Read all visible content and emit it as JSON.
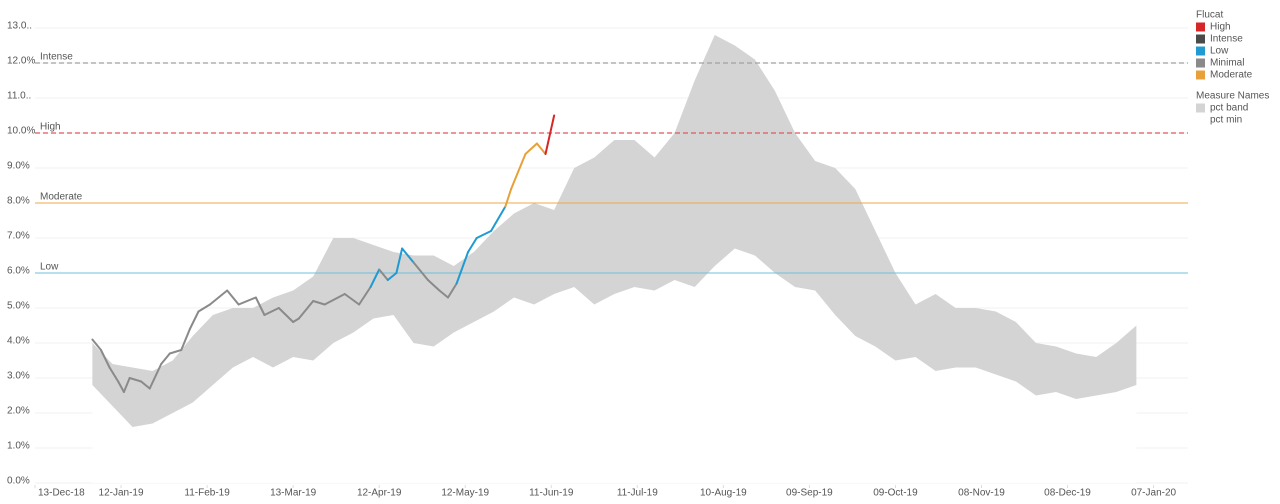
{
  "chart_data": {
    "type": "line",
    "xlim": [
      "2018-12-13",
      "2020-01-19"
    ],
    "xticks": [
      {
        "value": "2018-12-13",
        "label": "13-Dec-18"
      },
      {
        "value": "2019-01-12",
        "label": "12-Jan-19"
      },
      {
        "value": "2019-02-11",
        "label": "11-Feb-19"
      },
      {
        "value": "2019-03-13",
        "label": "13-Mar-19"
      },
      {
        "value": "2019-04-12",
        "label": "12-Apr-19"
      },
      {
        "value": "2019-05-12",
        "label": "12-May-19"
      },
      {
        "value": "2019-06-11",
        "label": "11-Jun-19"
      },
      {
        "value": "2019-07-11",
        "label": "11-Jul-19"
      },
      {
        "value": "2019-08-10",
        "label": "10-Aug-19"
      },
      {
        "value": "2019-09-09",
        "label": "09-Sep-19"
      },
      {
        "value": "2019-10-09",
        "label": "09-Oct-19"
      },
      {
        "value": "2019-11-08",
        "label": "08-Nov-19"
      },
      {
        "value": "2019-12-08",
        "label": "08-Dec-19"
      },
      {
        "value": "2020-01-07",
        "label": "07-Jan-20"
      }
    ],
    "ylim": [
      0,
      13
    ],
    "yticks": [
      {
        "value": 0,
        "label": "0.0%"
      },
      {
        "value": 1,
        "label": "1.0%"
      },
      {
        "value": 2,
        "label": "2.0%"
      },
      {
        "value": 3,
        "label": "3.0%"
      },
      {
        "value": 4,
        "label": "4.0%"
      },
      {
        "value": 5,
        "label": "5.0%"
      },
      {
        "value": 6,
        "label": "6.0%"
      },
      {
        "value": 7,
        "label": "7.0%"
      },
      {
        "value": 8,
        "label": "8.0%"
      },
      {
        "value": 9,
        "label": "9.0%"
      },
      {
        "value": 10,
        "label": "10.0%"
      },
      {
        "value": 11,
        "label": "11.0.."
      },
      {
        "value": 12,
        "label": "12.0%"
      },
      {
        "value": 13,
        "label": "13.0.."
      }
    ],
    "grid": true,
    "reference_lines": [
      {
        "label": "Intense",
        "value": 12,
        "color": "#a0a0a0",
        "dashed": true
      },
      {
        "label": "High",
        "value": 10,
        "color": "#e15759",
        "dashed": true
      },
      {
        "label": "Moderate",
        "value": 8,
        "color": "#f0a748",
        "dashed": false
      },
      {
        "label": "Low",
        "value": 6,
        "color": "#6cc0dc",
        "dashed": false
      }
    ],
    "legend_position": "right",
    "legend": [
      {
        "title": "Flucat",
        "items": [
          {
            "name": "High",
            "color": "#d62728"
          },
          {
            "name": "Intense",
            "color": "#4a4a4a"
          },
          {
            "name": "Low",
            "color": "#1f9bd1"
          },
          {
            "name": "Minimal",
            "color": "#8a8a8a"
          },
          {
            "name": "Moderate",
            "color": "#e8a03b"
          }
        ]
      },
      {
        "title": "Measure Names",
        "items": [
          {
            "name": "pct band",
            "color": "#d4d4d4"
          },
          {
            "name": "pct min",
            "color": "#ffffff"
          }
        ]
      }
    ],
    "area": {
      "x": [
        "2019-01-02",
        "2019-01-09",
        "2019-01-16",
        "2019-01-23",
        "2019-01-30",
        "2019-02-06",
        "2019-02-13",
        "2019-02-20",
        "2019-02-27",
        "2019-03-06",
        "2019-03-13",
        "2019-03-20",
        "2019-03-27",
        "2019-04-03",
        "2019-04-10",
        "2019-04-17",
        "2019-04-24",
        "2019-05-01",
        "2019-05-08",
        "2019-05-15",
        "2019-05-22",
        "2019-05-29",
        "2019-06-05",
        "2019-06-12",
        "2019-06-19",
        "2019-06-26",
        "2019-07-03",
        "2019-07-10",
        "2019-07-17",
        "2019-07-24",
        "2019-07-31",
        "2019-08-07",
        "2019-08-14",
        "2019-08-21",
        "2019-08-28",
        "2019-09-04",
        "2019-09-11",
        "2019-09-18",
        "2019-09-25",
        "2019-10-02",
        "2019-10-09",
        "2019-10-16",
        "2019-10-23",
        "2019-10-30",
        "2019-11-06",
        "2019-11-13",
        "2019-11-20",
        "2019-11-27",
        "2019-12-04",
        "2019-12-11",
        "2019-12-18",
        "2019-12-25",
        "2020-01-01"
      ],
      "series": [
        {
          "name": "pct min",
          "color": "#ffffff",
          "values": [
            2.8,
            2.2,
            1.6,
            1.7,
            2.0,
            2.3,
            2.8,
            3.3,
            3.6,
            3.3,
            3.6,
            3.5,
            4.0,
            4.3,
            4.7,
            4.8,
            4.0,
            3.9,
            4.3,
            4.6,
            4.9,
            5.3,
            5.1,
            5.4,
            5.6,
            5.1,
            5.4,
            5.6,
            5.5,
            5.8,
            5.6,
            6.2,
            6.7,
            6.5,
            6.0,
            5.6,
            5.5,
            4.8,
            4.2,
            3.9,
            3.5,
            3.6,
            3.2,
            3.3,
            3.3,
            3.1,
            2.9,
            2.5,
            2.6,
            2.4,
            2.5,
            2.6,
            2.8
          ]
        },
        {
          "name": "pct band",
          "color": "#d4d4d4",
          "values": [
            1.2,
            1.2,
            1.7,
            1.5,
            1.5,
            1.9,
            2.0,
            1.7,
            1.4,
            2.0,
            1.9,
            2.4,
            3.0,
            2.7,
            2.1,
            1.8,
            2.5,
            2.6,
            1.9,
            2.0,
            2.3,
            2.4,
            2.9,
            2.4,
            3.4,
            4.2,
            4.4,
            4.2,
            3.8,
            4.2,
            5.9,
            6.6,
            5.8,
            5.6,
            5.2,
            4.4,
            3.7,
            4.2,
            4.2,
            3.3,
            2.5,
            1.5,
            2.2,
            1.7,
            1.7,
            1.8,
            1.7,
            1.5,
            1.3,
            1.3,
            1.1,
            1.4,
            1.7
          ]
        }
      ]
    },
    "line": {
      "x": [
        "2019-01-02",
        "2019-01-05",
        "2019-01-08",
        "2019-01-11",
        "2019-01-13",
        "2019-01-15",
        "2019-01-19",
        "2019-01-22",
        "2019-01-26",
        "2019-01-29",
        "2019-02-02",
        "2019-02-05",
        "2019-02-08",
        "2019-02-12",
        "2019-02-18",
        "2019-02-22",
        "2019-02-28",
        "2019-03-03",
        "2019-03-08",
        "2019-03-13",
        "2019-03-15",
        "2019-03-20",
        "2019-03-24",
        "2019-03-31",
        "2019-04-05",
        "2019-04-09",
        "2019-04-12",
        "2019-04-15",
        "2019-04-18",
        "2019-04-20",
        "2019-04-24",
        "2019-04-29",
        "2019-05-03",
        "2019-05-06",
        "2019-05-09",
        "2019-05-13",
        "2019-05-16",
        "2019-05-21",
        "2019-05-26",
        "2019-05-28",
        "2019-06-02",
        "2019-06-06",
        "2019-06-09",
        "2019-06-12"
      ],
      "values": [
        4.1,
        3.8,
        3.3,
        2.9,
        2.6,
        3.0,
        2.9,
        2.7,
        3.4,
        3.7,
        3.8,
        4.4,
        4.9,
        5.1,
        5.5,
        5.1,
        5.3,
        4.8,
        5.0,
        4.6,
        4.7,
        5.2,
        5.1,
        5.4,
        5.1,
        5.6,
        6.1,
        5.8,
        6.0,
        6.7,
        6.3,
        5.8,
        5.5,
        5.3,
        5.7,
        6.6,
        7.0,
        7.2,
        7.9,
        8.4,
        9.4,
        9.7,
        9.4,
        10.5
      ],
      "flucat": [
        "Minimal",
        "Minimal",
        "Minimal",
        "Minimal",
        "Minimal",
        "Minimal",
        "Minimal",
        "Minimal",
        "Minimal",
        "Minimal",
        "Minimal",
        "Minimal",
        "Minimal",
        "Minimal",
        "Minimal",
        "Minimal",
        "Minimal",
        "Minimal",
        "Minimal",
        "Minimal",
        "Minimal",
        "Minimal",
        "Minimal",
        "Minimal",
        "Minimal",
        "Minimal",
        "Low",
        "Minimal",
        "Low",
        "Low",
        "Low",
        "Minimal",
        "Minimal",
        "Minimal",
        "Minimal",
        "Low",
        "Low",
        "Low",
        "Low",
        "Moderate",
        "Moderate",
        "Moderate",
        "Moderate",
        "High"
      ]
    }
  }
}
